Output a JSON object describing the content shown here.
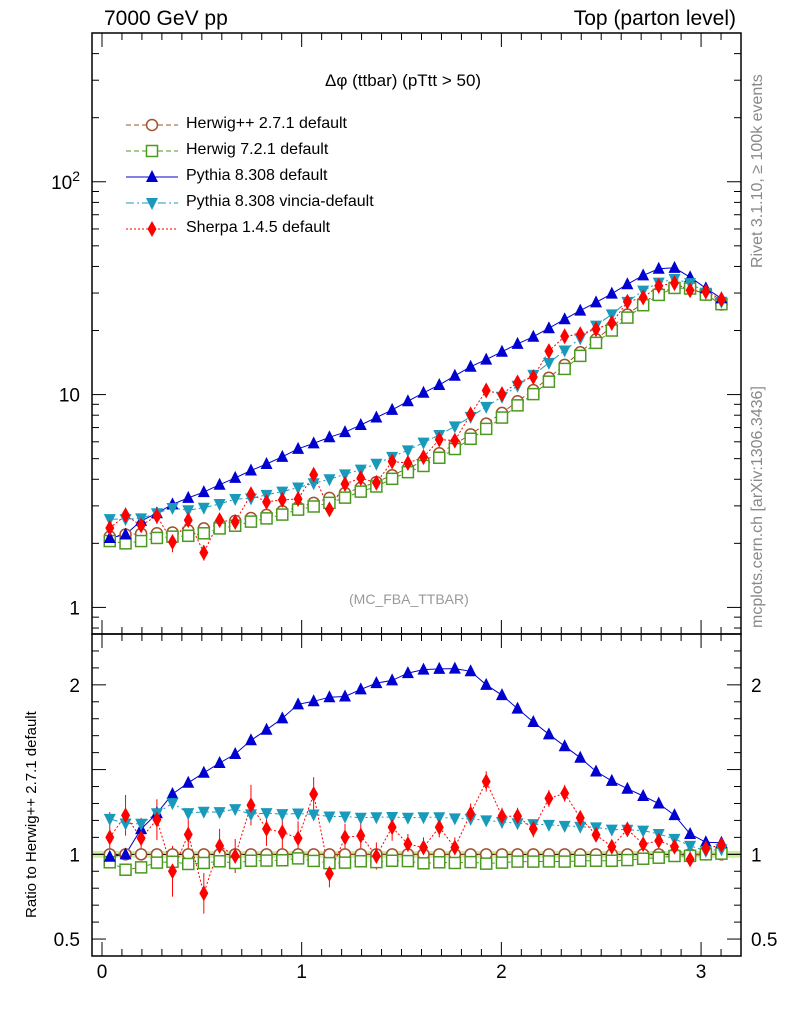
{
  "header": {
    "left": "7000 GeV pp",
    "right": "Top (parton level)"
  },
  "side_labels": {
    "rivet": "Rivet 3.1.10, ≥ 100k events",
    "mcplots": "mcplots.cern.ch [arXiv:1306.3436]"
  },
  "chart_data": {
    "type": "scatter",
    "title": "Δφ (ttbar) (pTtt > 50)",
    "analysis_tag": "(MC_FBA_TTBAR)",
    "xlim": [
      -0.05,
      3.2
    ],
    "x_ticks": [
      "0",
      "1",
      "2",
      "3"
    ],
    "main_panel": {
      "yscale": "log",
      "ylim": [
        0.75,
        500
      ],
      "y_ticks": [
        "1",
        "10",
        "10^2"
      ]
    },
    "ratio_panel": {
      "ylabel": "Ratio to Herwig++ 2.7.1 default",
      "ylim": [
        0.4,
        2.3
      ],
      "y_ticks": [
        "0.5",
        "1",
        "2"
      ],
      "reference_band": [
        0.98,
        1.02
      ]
    },
    "legend_position": "top-left",
    "x": [
      0.039,
      0.118,
      0.196,
      0.275,
      0.353,
      0.432,
      0.51,
      0.589,
      0.667,
      0.746,
      0.824,
      0.903,
      0.982,
      1.06,
      1.139,
      1.217,
      1.296,
      1.374,
      1.453,
      1.532,
      1.61,
      1.689,
      1.767,
      1.846,
      1.924,
      2.003,
      2.081,
      2.16,
      2.238,
      2.317,
      2.395,
      2.474,
      2.553,
      2.631,
      2.71,
      2.788,
      2.867,
      2.945,
      3.024,
      3.102
    ],
    "series": [
      {
        "name": "Herwig++ 2.7.1 default",
        "color": "#a0522d",
        "marker": "open-circle",
        "line": "dashed",
        "values": [
          2.15,
          2.2,
          2.22,
          2.23,
          2.25,
          2.3,
          2.35,
          2.45,
          2.55,
          2.63,
          2.72,
          2.83,
          2.95,
          3.1,
          3.27,
          3.45,
          3.65,
          3.88,
          4.18,
          4.5,
          4.88,
          5.3,
          5.85,
          6.5,
          7.3,
          8.2,
          9.3,
          10.5,
          12.0,
          13.8,
          15.8,
          18.2,
          20.8,
          23.8,
          27.0,
          30.0,
          32.0,
          31.8,
          29.5,
          26.5
        ],
        "ratio": [
          1.0,
          1.0,
          1.0,
          1.0,
          1.0,
          1.0,
          1.0,
          1.0,
          1.0,
          1.0,
          1.0,
          1.0,
          1.0,
          1.0,
          1.0,
          1.0,
          1.0,
          1.0,
          1.0,
          1.0,
          1.0,
          1.0,
          1.0,
          1.0,
          1.0,
          1.0,
          1.0,
          1.0,
          1.0,
          1.0,
          1.0,
          1.0,
          1.0,
          1.0,
          1.0,
          1.0,
          1.0,
          1.0,
          1.0,
          1.0
        ]
      },
      {
        "name": "Herwig 7.2.1 default",
        "color": "#4a9a1f",
        "marker": "open-square",
        "line": "dashed",
        "values": [
          2.05,
          2.0,
          2.05,
          2.12,
          2.15,
          2.17,
          2.23,
          2.35,
          2.42,
          2.53,
          2.62,
          2.73,
          2.88,
          2.98,
          3.1,
          3.28,
          3.5,
          3.7,
          4.02,
          4.32,
          4.62,
          5.05,
          5.55,
          6.2,
          6.9,
          7.8,
          8.9,
          10.05,
          11.5,
          13.2,
          15.2,
          17.5,
          20.0,
          23.0,
          26.3,
          29.4,
          31.7,
          31.5,
          29.5,
          26.6
        ],
        "ratio": [
          0.953,
          0.909,
          0.923,
          0.951,
          0.956,
          0.943,
          0.949,
          0.959,
          0.949,
          0.962,
          0.963,
          0.965,
          0.976,
          0.961,
          0.948,
          0.951,
          0.959,
          0.954,
          0.962,
          0.96,
          0.947,
          0.953,
          0.949,
          0.954,
          0.945,
          0.951,
          0.957,
          0.957,
          0.958,
          0.957,
          0.962,
          0.962,
          0.962,
          0.966,
          0.974,
          0.98,
          0.99,
          0.991,
          1.0,
          1.004
        ]
      },
      {
        "name": "Pythia 8.308 default",
        "color": "#0000d0",
        "marker": "filled-triangle-up",
        "line": "solid",
        "values": [
          2.12,
          2.2,
          2.55,
          2.77,
          3.05,
          3.27,
          3.48,
          3.77,
          4.06,
          4.4,
          4.72,
          5.1,
          5.56,
          5.9,
          6.3,
          6.66,
          7.2,
          7.8,
          8.47,
          9.31,
          10.2,
          11.1,
          12.26,
          13.52,
          14.6,
          15.9,
          17.3,
          18.7,
          20.5,
          22.6,
          24.8,
          27.1,
          29.8,
          33.0,
          36.3,
          39.0,
          39.4,
          35.6,
          31.6,
          28.3
        ],
        "ratio": [
          0.986,
          1.0,
          1.149,
          1.242,
          1.356,
          1.422,
          1.481,
          1.539,
          1.592,
          1.673,
          1.735,
          1.802,
          1.885,
          1.903,
          1.927,
          1.931,
          1.973,
          2.01,
          2.026,
          2.069,
          2.09,
          2.094,
          2.096,
          2.08,
          2.0,
          1.939,
          1.86,
          1.781,
          1.708,
          1.638,
          1.57,
          1.489,
          1.433,
          1.387,
          1.344,
          1.3,
          1.231,
          1.12,
          1.071,
          1.068
        ]
      },
      {
        "name": "Pythia 8.308 vincia-default",
        "color": "#1a9abb",
        "marker": "filled-triangle-down",
        "line": "dash-dot",
        "values": [
          2.6,
          2.6,
          2.62,
          2.77,
          2.93,
          2.86,
          2.94,
          3.06,
          3.23,
          3.25,
          3.38,
          3.5,
          3.66,
          3.83,
          4.0,
          4.22,
          4.44,
          4.73,
          5.1,
          5.47,
          5.95,
          6.46,
          7.09,
          7.86,
          8.76,
          9.77,
          11.0,
          12.37,
          14.09,
          16.12,
          18.38,
          21.1,
          23.83,
          27.25,
          30.78,
          33.6,
          34.9,
          33.4,
          30.1,
          27.3
        ],
        "ratio": [
          1.209,
          1.182,
          1.18,
          1.242,
          1.302,
          1.243,
          1.251,
          1.249,
          1.267,
          1.236,
          1.243,
          1.237,
          1.241,
          1.235,
          1.223,
          1.223,
          1.216,
          1.219,
          1.22,
          1.216,
          1.219,
          1.219,
          1.212,
          1.209,
          1.2,
          1.191,
          1.183,
          1.178,
          1.174,
          1.168,
          1.163,
          1.159,
          1.146,
          1.145,
          1.14,
          1.12,
          1.091,
          1.05,
          1.02,
          1.03
        ]
      },
      {
        "name": "Sherpa 1.4.5 default",
        "color": "#ff0000",
        "marker": "filled-diamond",
        "line": "dotted",
        "values": [
          2.36,
          2.71,
          2.43,
          2.69,
          2.03,
          2.57,
          1.81,
          2.57,
          2.52,
          3.4,
          3.13,
          3.2,
          3.23,
          4.2,
          2.89,
          3.8,
          4.05,
          3.85,
          4.85,
          4.77,
          5.08,
          6.15,
          6.08,
          8.07,
          10.45,
          10.05,
          11.4,
          12.1,
          16.0,
          18.8,
          19.2,
          20.3,
          21.7,
          27.3,
          28.6,
          32.4,
          33.4,
          30.9,
          30.5,
          28.0
        ],
        "ratio": [
          1.1,
          1.23,
          1.095,
          1.205,
          0.9,
          1.117,
          0.77,
          1.05,
          0.99,
          1.29,
          1.15,
          1.13,
          1.095,
          1.355,
          0.885,
          1.1,
          1.11,
          0.99,
          1.16,
          1.06,
          1.04,
          1.16,
          1.04,
          1.24,
          1.43,
          1.225,
          1.225,
          1.15,
          1.33,
          1.36,
          1.215,
          1.115,
          1.045,
          1.147,
          1.06,
          1.08,
          1.045,
          0.97,
          1.035,
          1.055
        ],
        "ratio_err": [
          0.15,
          0.12,
          0.12,
          0.12,
          0.15,
          0.12,
          0.12,
          0.1,
          0.1,
          0.12,
          0.1,
          0.1,
          0.1,
          0.1,
          0.08,
          0.08,
          0.08,
          0.08,
          0.08,
          0.06,
          0.06,
          0.06,
          0.06,
          0.06,
          0.06,
          0.05,
          0.05,
          0.05,
          0.05,
          0.05,
          0.04,
          0.04,
          0.04,
          0.04,
          0.04,
          0.04,
          0.04,
          0.04,
          0.04,
          0.04
        ]
      }
    ]
  }
}
